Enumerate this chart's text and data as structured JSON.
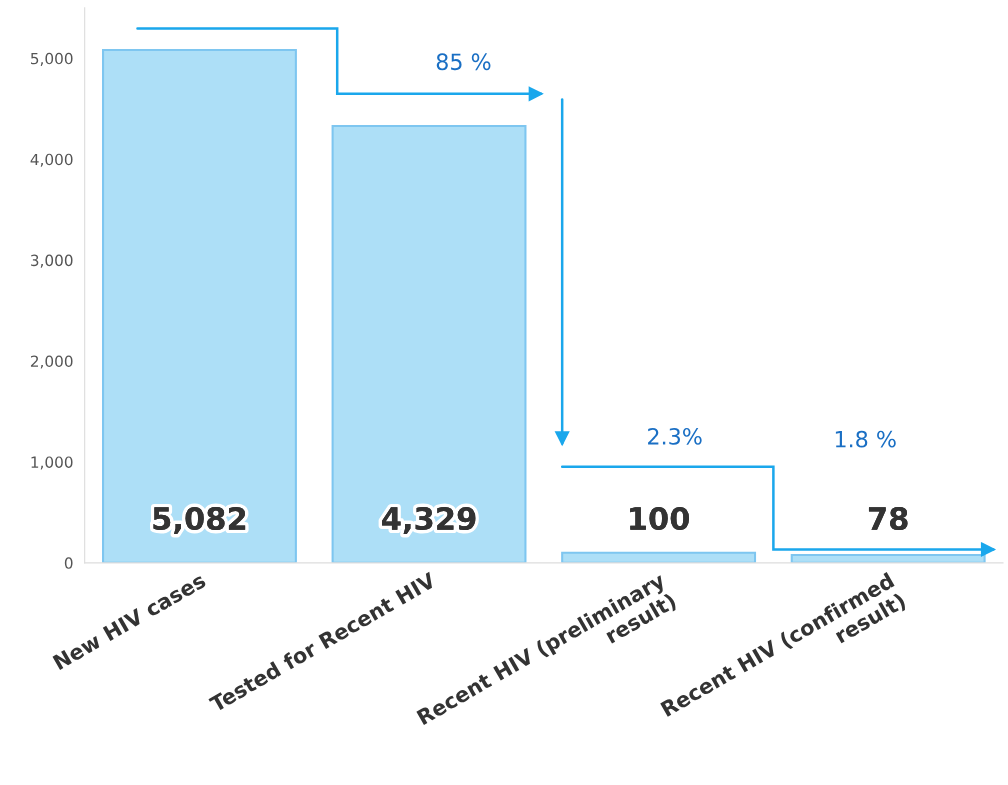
{
  "chart_data": {
    "type": "bar",
    "categories": [
      "New HIV cases",
      "Tested for Recent HIV",
      "Recent HIV (preliminary\nresult)",
      "Recent HIV (confirmed\nresult)"
    ],
    "values": [
      5082,
      4329,
      100,
      78
    ],
    "value_labels": [
      "5,082",
      "4,329",
      "100",
      "78"
    ],
    "color": "#addff7",
    "ylim": [
      0,
      5500
    ],
    "yticks": [
      0,
      {
        "value": 1000,
        "label": "1,000"
      },
      {
        "value": 2000,
        "label": "2,000"
      },
      {
        "value": 3000,
        "label": "3,000"
      },
      {
        "value": 4000,
        "label": "4,000"
      },
      {
        "value": 5000,
        "label": "5,000"
      }
    ],
    "annotations": [
      "85 %",
      "2.3%",
      "1.8 %"
    ],
    "grid": false,
    "legend": false
  }
}
